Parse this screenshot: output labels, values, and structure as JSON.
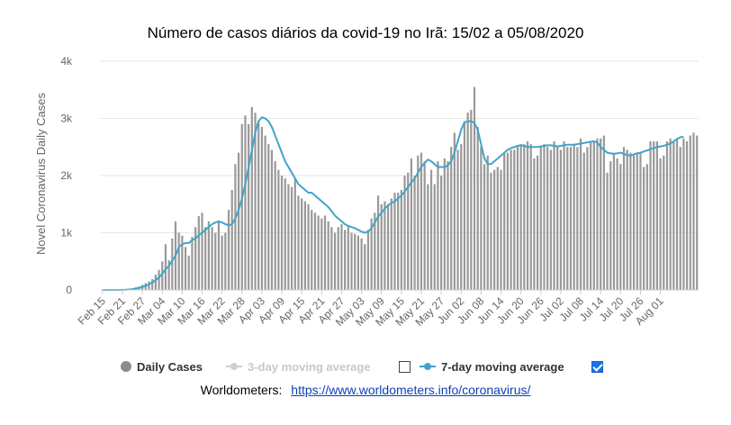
{
  "chart_data": {
    "type": "bar",
    "title": "Número de casos diários da covid-19 no Irã: 15/02 a 05/08/2020",
    "ylabel": "Novel Coronavirus Daily Cases",
    "xlabel": "",
    "ylim": [
      0,
      4000
    ],
    "yticks": [
      "0",
      "1k",
      "2k",
      "3k",
      "4k"
    ],
    "ytick_values": [
      0,
      1000,
      2000,
      3000,
      4000
    ],
    "grid": true,
    "legend_position": "bottom",
    "x_tick_labels": [
      "Feb 15",
      "Feb 21",
      "Feb 27",
      "Mar 04",
      "Mar 10",
      "Mar 16",
      "Mar 22",
      "Mar 28",
      "Apr 03",
      "Apr 09",
      "Apr 15",
      "Apr 21",
      "Apr 27",
      "May 03",
      "May 09",
      "May 15",
      "May 21",
      "May 27",
      "Jun 02",
      "Jun 08",
      "Jun 14",
      "Jun 20",
      "Jun 26",
      "Jul 02",
      "Jul 08",
      "Jul 14",
      "Jul 20",
      "Jul 26",
      "Aug 01"
    ],
    "start_date": "2020-02-15",
    "series": [
      {
        "name": "Daily Cases",
        "values": [
          0,
          0,
          0,
          0,
          0,
          2,
          3,
          8,
          15,
          25,
          45,
          60,
          90,
          120,
          150,
          190,
          270,
          350,
          500,
          800,
          520,
          900,
          1200,
          1000,
          950,
          750,
          600,
          930,
          1100,
          1290,
          1350,
          1100,
          1200,
          1100,
          1000,
          1200,
          950,
          1000,
          1400,
          1750,
          2200,
          2400,
          2900,
          3050,
          2900,
          3200,
          3100,
          2950,
          2850,
          2700,
          2550,
          2450,
          2250,
          2100,
          2000,
          1950,
          1850,
          1800,
          1950,
          1650,
          1600,
          1550,
          1500,
          1400,
          1350,
          1300,
          1250,
          1300,
          1200,
          1100,
          1000,
          1100,
          1150,
          1050,
          1100,
          1000,
          980,
          950,
          900,
          800,
          1050,
          1250,
          1350,
          1650,
          1500,
          1550,
          1500,
          1600,
          1700,
          1700,
          1750,
          2000,
          2050,
          2300,
          2000,
          2350,
          2400,
          2250,
          1850,
          2100,
          1850,
          2250,
          2000,
          2300,
          2250,
          2500,
          2750,
          2450,
          2550,
          2950,
          3100,
          3150,
          3550,
          2850,
          2500,
          2200,
          2350,
          2050,
          2100,
          2150,
          2100,
          2400,
          2400,
          2450,
          2450,
          2500,
          2550,
          2550,
          2600,
          2550,
          2300,
          2350,
          2500,
          2550,
          2500,
          2450,
          2600,
          2500,
          2450,
          2600,
          2500,
          2500,
          2550,
          2500,
          2650,
          2400,
          2500,
          2600,
          2600,
          2650,
          2650,
          2700,
          2050,
          2250,
          2400,
          2300,
          2200,
          2500,
          2450,
          2400,
          2350,
          2400,
          2400,
          2150,
          2200,
          2600,
          2600,
          2600,
          2300,
          2350,
          2600,
          2650,
          2600,
          2650,
          2500,
          2650,
          2600,
          2700,
          2750,
          2700
        ]
      },
      {
        "name": "3-day moving average",
        "visible": false
      },
      {
        "name": "7-day moving average",
        "visible": true,
        "values": [
          0,
          0,
          0,
          0,
          0,
          1,
          2,
          4,
          8,
          14,
          23,
          35,
          51,
          73,
          98,
          130,
          170,
          220,
          280,
          360,
          420,
          510,
          600,
          750,
          800,
          820,
          820,
          870,
          900,
          960,
          1000,
          1050,
          1100,
          1150,
          1180,
          1200,
          1180,
          1150,
          1130,
          1150,
          1250,
          1400,
          1600,
          1850,
          2150,
          2450,
          2750,
          2950,
          3020,
          3000,
          2950,
          2850,
          2700,
          2550,
          2400,
          2250,
          2150,
          2050,
          1950,
          1850,
          1800,
          1750,
          1700,
          1700,
          1650,
          1600,
          1550,
          1500,
          1450,
          1380,
          1300,
          1250,
          1200,
          1150,
          1120,
          1100,
          1080,
          1050,
          1020,
          1000,
          1020,
          1080,
          1180,
          1280,
          1350,
          1420,
          1480,
          1520,
          1550,
          1600,
          1650,
          1720,
          1800,
          1880,
          1950,
          2050,
          2150,
          2220,
          2280,
          2250,
          2200,
          2150,
          2150,
          2150,
          2180,
          2250,
          2400,
          2600,
          2800,
          2930,
          2950,
          2950,
          2920,
          2800,
          2550,
          2300,
          2200,
          2200,
          2250,
          2300,
          2350,
          2400,
          2450,
          2480,
          2500,
          2520,
          2530,
          2520,
          2500,
          2500,
          2500,
          2500,
          2510,
          2520,
          2530,
          2530,
          2520,
          2510,
          2520,
          2530,
          2540,
          2540,
          2540,
          2550,
          2560,
          2570,
          2580,
          2590,
          2600,
          2580,
          2500,
          2450,
          2400,
          2390,
          2380,
          2390,
          2400,
          2380,
          2360,
          2350,
          2370,
          2390,
          2400,
          2420,
          2440,
          2460,
          2480,
          2500,
          2510,
          2520,
          2540,
          2560,
          2600,
          2640,
          2670,
          2680
        ]
      }
    ]
  },
  "legend": {
    "daily": "Daily Cases",
    "ma3": "3-day moving average",
    "ma7": "7-day moving average"
  },
  "source": {
    "label": "Worldometers:",
    "url": "https://www.worldometers.info/coronavirus/"
  },
  "colors": {
    "bar": "#999999",
    "line": "#41a4cc",
    "inactive": "#cfcfcf",
    "grid": "#e6e6e6"
  }
}
